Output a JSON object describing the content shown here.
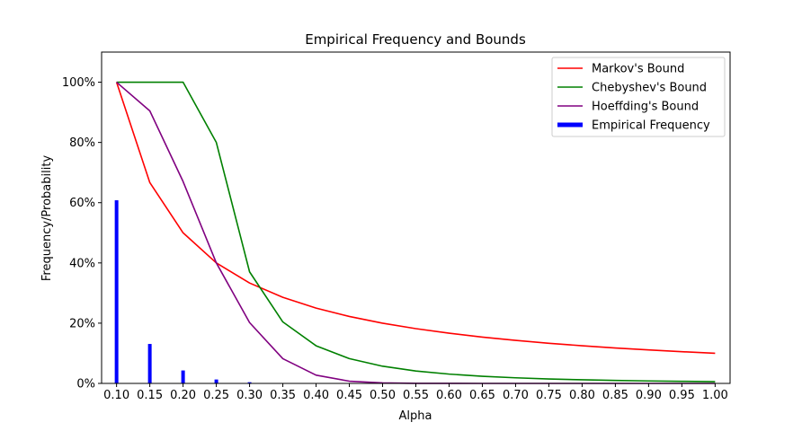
{
  "chart_data": {
    "type": "line",
    "title": "Empirical Frequency and Bounds",
    "xlabel": "Alpha",
    "ylabel": "Frequency/Probability",
    "x": [
      0.1,
      0.15,
      0.2,
      0.25,
      0.3,
      0.35,
      0.4,
      0.45,
      0.5,
      0.55,
      0.6,
      0.65,
      0.7,
      0.75,
      0.8,
      0.85,
      0.9,
      0.95,
      1.0
    ],
    "xticks": [
      "0.10",
      "0.15",
      "0.20",
      "0.25",
      "0.30",
      "0.35",
      "0.40",
      "0.45",
      "0.50",
      "0.55",
      "0.60",
      "0.65",
      "0.70",
      "0.75",
      "0.80",
      "0.85",
      "0.90",
      "0.95",
      "1.00"
    ],
    "xlim": [
      0.0775,
      1.0225
    ],
    "ylim": [
      0,
      1.1
    ],
    "yticks": [
      0,
      0.2,
      0.4,
      0.6,
      0.8,
      1.0
    ],
    "ytick_labels": [
      "0%",
      "20%",
      "40%",
      "60%",
      "80%",
      "100%"
    ],
    "legend_position": "top-right",
    "series": [
      {
        "name": "Markov's Bound",
        "kind": "line",
        "color": "#ff0000",
        "values": [
          1.0,
          0.6667,
          0.5,
          0.4,
          0.3333,
          0.2857,
          0.25,
          0.2222,
          0.2,
          0.1818,
          0.1667,
          0.1538,
          0.1429,
          0.1333,
          0.125,
          0.1176,
          0.1111,
          0.1053,
          0.1
        ]
      },
      {
        "name": "Chebyshev's Bound",
        "kind": "line",
        "color": "#008000",
        "values": [
          1.0,
          1.0,
          1.0,
          0.8,
          0.3704,
          0.2041,
          0.125,
          0.0823,
          0.0571,
          0.0413,
          0.0309,
          0.0237,
          0.0186,
          0.0148,
          0.0121,
          0.0099,
          0.0082,
          0.0069,
          0.0059
        ]
      },
      {
        "name": "Hoeffding's Bound",
        "kind": "line",
        "color": "#800080",
        "values": [
          1.0,
          0.9048,
          0.6703,
          0.4,
          0.2019,
          0.0821,
          0.0273,
          0.0074,
          0.0017,
          0.0003,
          0.0001,
          0.0,
          0.0,
          0.0,
          0.0,
          0.0,
          0.0,
          0.0,
          0.0
        ]
      },
      {
        "name": "Empirical Frequency",
        "kind": "bar",
        "color": "#0000ff",
        "values": [
          0.608,
          0.131,
          0.043,
          0.013,
          0.004,
          0.0,
          0.0,
          0.0,
          0.0,
          0.0,
          0.0,
          0.0,
          0.0,
          0.0,
          0.0,
          0.0,
          0.0,
          0.0,
          0.0
        ]
      }
    ]
  }
}
